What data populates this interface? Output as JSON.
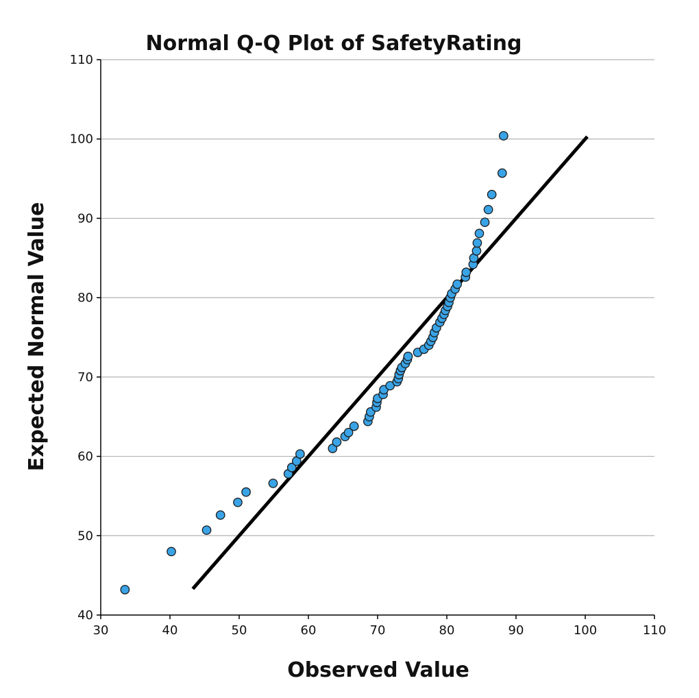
{
  "chart_data": {
    "type": "scatter",
    "title": "Normal Q-Q Plot of SafetyRating",
    "xlabel": "Observed Value",
    "ylabel": "Expected Normal Value",
    "xlim": [
      30,
      110
    ],
    "ylim": [
      40,
      110
    ],
    "x_ticks": [
      30,
      40,
      50,
      60,
      70,
      80,
      90,
      100,
      110
    ],
    "y_ticks": [
      40,
      50,
      60,
      70,
      80,
      90,
      100,
      110
    ],
    "grid": "horizontal",
    "reference_line": {
      "x": [
        43.3,
        100.3
      ],
      "y": [
        43.3,
        100.3
      ]
    },
    "points_color": "#3AA3E6",
    "points_edge_color": "#1a1a1a",
    "line_color": "#000000",
    "series": [
      {
        "points": [
          [
            33.5,
            43.2
          ],
          [
            40.2,
            48.0
          ],
          [
            45.3,
            50.7
          ],
          [
            47.3,
            52.6
          ],
          [
            49.8,
            54.2
          ],
          [
            51.0,
            55.5
          ],
          [
            54.9,
            56.6
          ],
          [
            57.1,
            57.8
          ],
          [
            57.6,
            58.6
          ],
          [
            58.3,
            59.4
          ],
          [
            58.8,
            60.3
          ],
          [
            63.5,
            61.0
          ],
          [
            64.1,
            61.8
          ],
          [
            65.3,
            62.5
          ],
          [
            65.8,
            63.0
          ],
          [
            66.6,
            63.8
          ],
          [
            68.6,
            64.4
          ],
          [
            68.8,
            65.0
          ],
          [
            69.0,
            65.6
          ],
          [
            69.8,
            66.2
          ],
          [
            69.9,
            66.8
          ],
          [
            70.0,
            67.3
          ],
          [
            70.8,
            67.8
          ],
          [
            70.9,
            68.4
          ],
          [
            71.8,
            68.9
          ],
          [
            72.8,
            69.4
          ],
          [
            73.0,
            69.8
          ],
          [
            73.1,
            70.3
          ],
          [
            73.3,
            70.8
          ],
          [
            73.5,
            71.2
          ],
          [
            74.0,
            71.7
          ],
          [
            74.3,
            72.2
          ],
          [
            74.4,
            72.6
          ],
          [
            75.8,
            73.1
          ],
          [
            76.7,
            73.5
          ],
          [
            77.4,
            74.0
          ],
          [
            77.7,
            74.5
          ],
          [
            78.0,
            75.0
          ],
          [
            78.2,
            75.6
          ],
          [
            78.5,
            76.2
          ],
          [
            79.0,
            76.9
          ],
          [
            79.3,
            77.4
          ],
          [
            79.6,
            77.9
          ],
          [
            79.8,
            78.4
          ],
          [
            80.1,
            78.9
          ],
          [
            80.3,
            79.4
          ],
          [
            80.5,
            80.0
          ],
          [
            80.7,
            80.5
          ],
          [
            81.2,
            81.1
          ],
          [
            81.5,
            81.7
          ],
          [
            82.7,
            82.6
          ],
          [
            82.8,
            83.2
          ],
          [
            83.8,
            84.2
          ],
          [
            83.9,
            85.0
          ],
          [
            84.3,
            85.9
          ],
          [
            84.4,
            86.9
          ],
          [
            84.7,
            88.1
          ],
          [
            85.5,
            89.5
          ],
          [
            86.0,
            91.1
          ],
          [
            86.5,
            93.0
          ],
          [
            88.0,
            95.7
          ],
          [
            88.2,
            100.4
          ]
        ]
      }
    ]
  }
}
